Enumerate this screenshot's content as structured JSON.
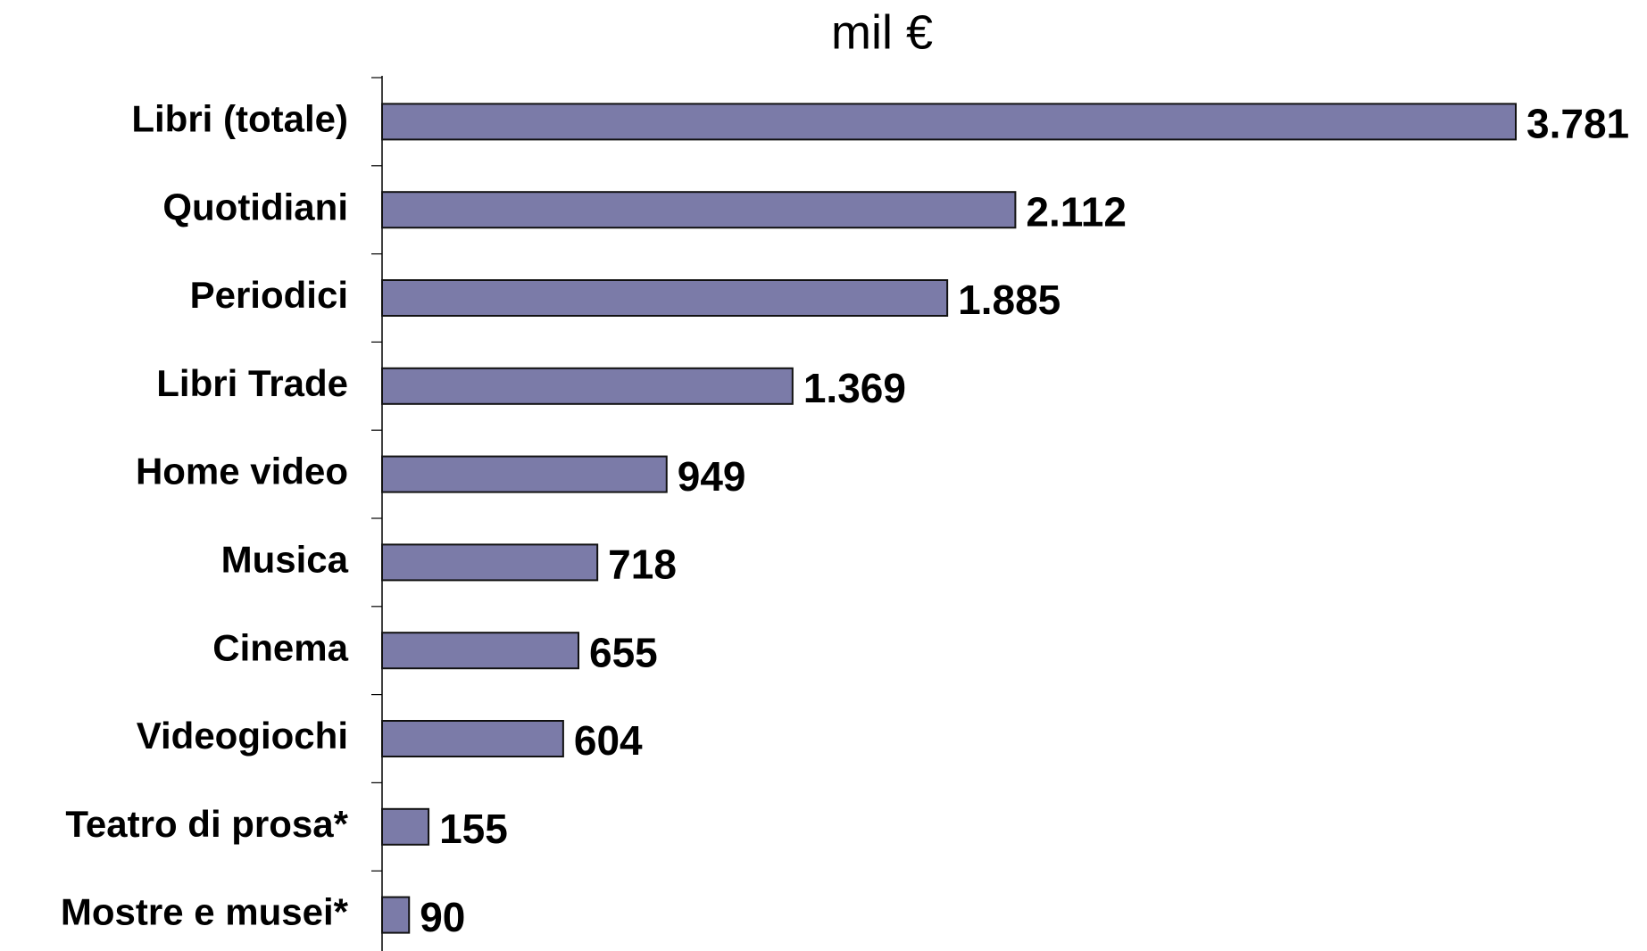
{
  "chart_data": {
    "type": "bar",
    "orientation": "horizontal",
    "title": "mil €",
    "categories": [
      "Libri (totale)",
      "Quotidiani",
      "Periodici",
      "Libri Trade",
      "Home video",
      "Musica",
      "Cinema",
      "Videogiochi",
      "Teatro di prosa*",
      "Mostre e musei*"
    ],
    "values": [
      3781,
      2112,
      1885,
      1369,
      949,
      718,
      655,
      604,
      155,
      90
    ],
    "value_labels": [
      "3.781",
      "2.112",
      "1.885",
      "1.369",
      "949",
      "718",
      "655",
      "604",
      "155",
      "90"
    ],
    "color": "#7b7ba8"
  }
}
